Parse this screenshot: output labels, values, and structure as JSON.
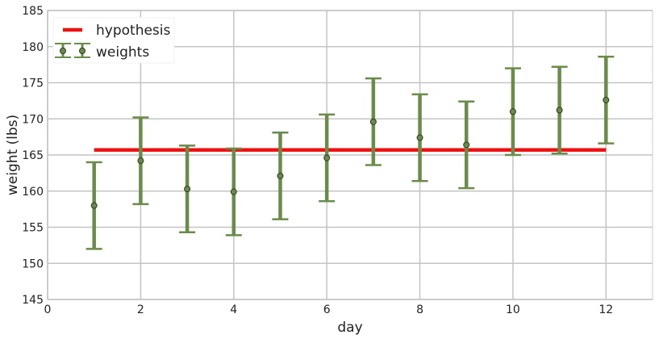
{
  "chart_data": {
    "type": "scatter",
    "xlabel": "day",
    "ylabel": "weight (lbs)",
    "xlim": [
      0,
      13
    ],
    "ylim": [
      145,
      185
    ],
    "xticks": [
      0,
      2,
      4,
      6,
      8,
      10,
      12
    ],
    "yticks": [
      145,
      150,
      155,
      160,
      165,
      170,
      175,
      180,
      185
    ],
    "grid": true,
    "legend_position": "top-left",
    "colors": {
      "weights": "#6a8c4a",
      "hypothesis": "#ee1111",
      "grid": "#c4c4c4",
      "background": "#ffffff",
      "frame": "#e6e6e6"
    },
    "series": [
      {
        "name": "weights",
        "kind": "errorbar",
        "x": [
          1,
          2,
          3,
          4,
          5,
          6,
          7,
          8,
          9,
          10,
          11,
          12
        ],
        "y": [
          158.0,
          164.2,
          160.3,
          159.9,
          162.1,
          164.6,
          169.6,
          167.4,
          166.4,
          171.0,
          171.2,
          172.6
        ],
        "yerr": [
          6,
          6,
          6,
          6,
          6,
          6,
          6,
          6,
          6,
          6,
          6,
          6
        ]
      },
      {
        "name": "hypothesis",
        "kind": "line",
        "x": [
          1,
          12
        ],
        "y": [
          165.7,
          165.7
        ]
      }
    ]
  }
}
